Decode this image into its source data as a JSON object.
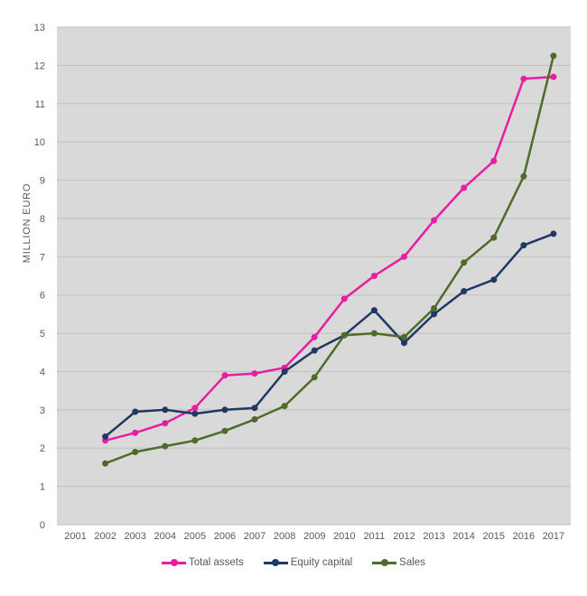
{
  "page": {
    "background": "#ffffff"
  },
  "chart_data": {
    "type": "line",
    "title": "",
    "xlabel": "",
    "ylabel": "MILLION EURO",
    "ylim": [
      0,
      13
    ],
    "yticks": [
      0,
      1,
      2,
      3,
      4,
      5,
      6,
      7,
      8,
      9,
      10,
      11,
      12,
      13
    ],
    "grid": "horizontal",
    "legend_position": "bottom",
    "plot_bg": "#d9d9d9",
    "gridline_color": "#bfbfbf",
    "axis_text_color": "#595959",
    "categories": [
      "2001",
      "2002",
      "2003",
      "2004",
      "2005",
      "2006",
      "2007",
      "2008",
      "2009",
      "2010",
      "2011",
      "2012",
      "2013",
      "2014",
      "2015",
      "2016",
      "2017"
    ],
    "series": [
      {
        "name": "Total assets",
        "color": "#e91ca4",
        "marker": "circle",
        "start_category": "2002",
        "values": [
          2.2,
          2.4,
          2.65,
          3.05,
          3.9,
          3.95,
          4.1,
          4.9,
          5.9,
          6.5,
          7.0,
          7.95,
          8.8,
          9.5,
          11.65,
          11.7
        ]
      },
      {
        "name": "Equity capital",
        "color": "#1f3864",
        "marker": "circle",
        "start_category": "2002",
        "values": [
          2.3,
          2.95,
          3.0,
          2.9,
          3.0,
          3.05,
          4.0,
          4.55,
          4.95,
          5.6,
          4.75,
          5.5,
          6.1,
          6.4,
          7.3,
          7.6
        ]
      },
      {
        "name": "Sales",
        "color": "#4e6b29",
        "marker": "circle",
        "start_category": "2002",
        "values": [
          1.6,
          1.9,
          2.05,
          2.2,
          2.45,
          2.75,
          3.1,
          3.85,
          4.95,
          5.0,
          4.9,
          5.65,
          6.85,
          7.5,
          9.1,
          12.25
        ]
      }
    ]
  }
}
